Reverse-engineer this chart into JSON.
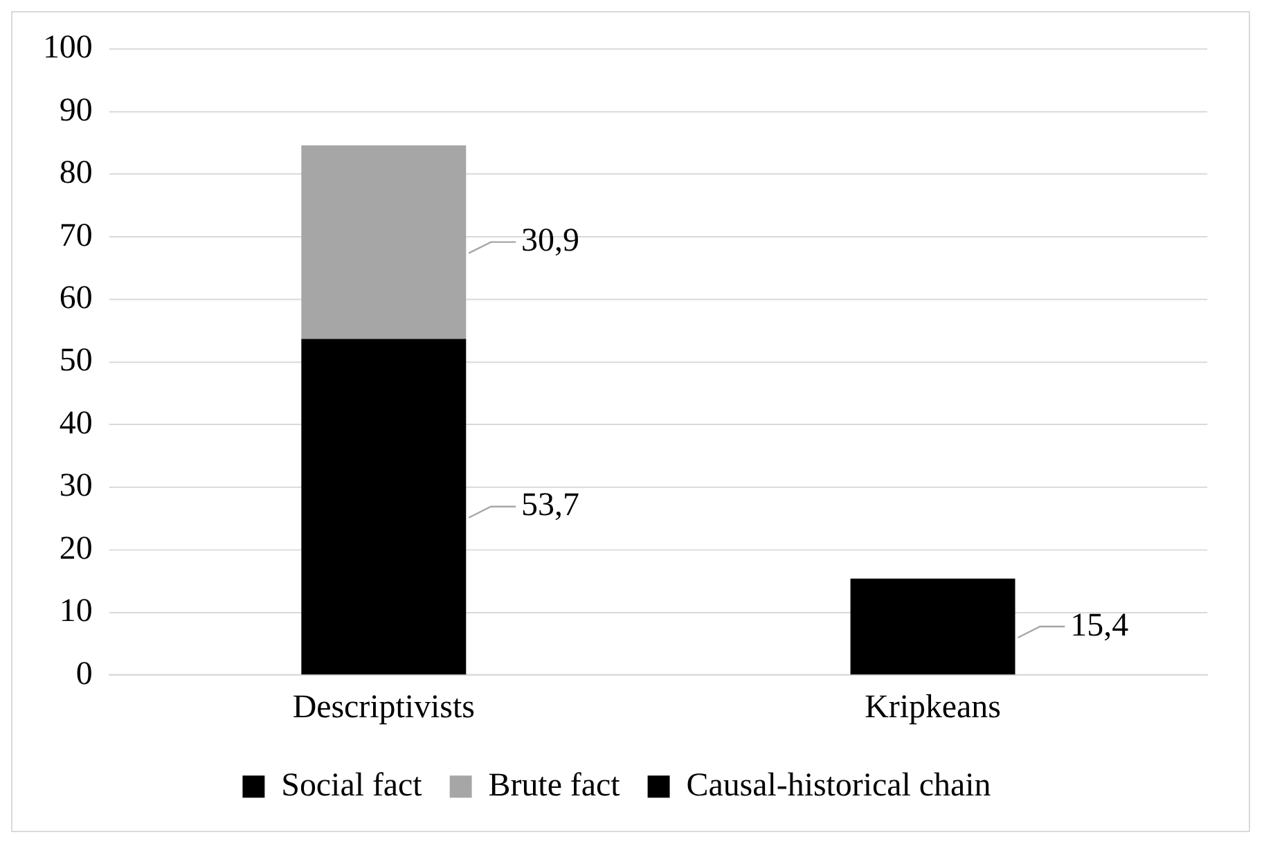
{
  "chart_data": {
    "type": "bar",
    "stacked": true,
    "categories": [
      "Descriptivists",
      "Kripkeans"
    ],
    "series": [
      {
        "name": "Social fact",
        "color": "#000000",
        "values": [
          53.7,
          null
        ],
        "value_labels": [
          "53,7",
          null
        ]
      },
      {
        "name": "Brute fact",
        "color": "#a6a6a6",
        "values": [
          30.9,
          null
        ],
        "value_labels": [
          "30,9",
          null
        ]
      },
      {
        "name": "Causal-historical chain",
        "color": "#000000",
        "values": [
          null,
          15.4
        ],
        "value_labels": [
          null,
          "15,4"
        ]
      }
    ],
    "ylim": [
      0,
      100
    ],
    "yticks": [
      0,
      10,
      20,
      30,
      40,
      50,
      60,
      70,
      80,
      90,
      100
    ],
    "grid": "y",
    "legend": "bottom"
  }
}
